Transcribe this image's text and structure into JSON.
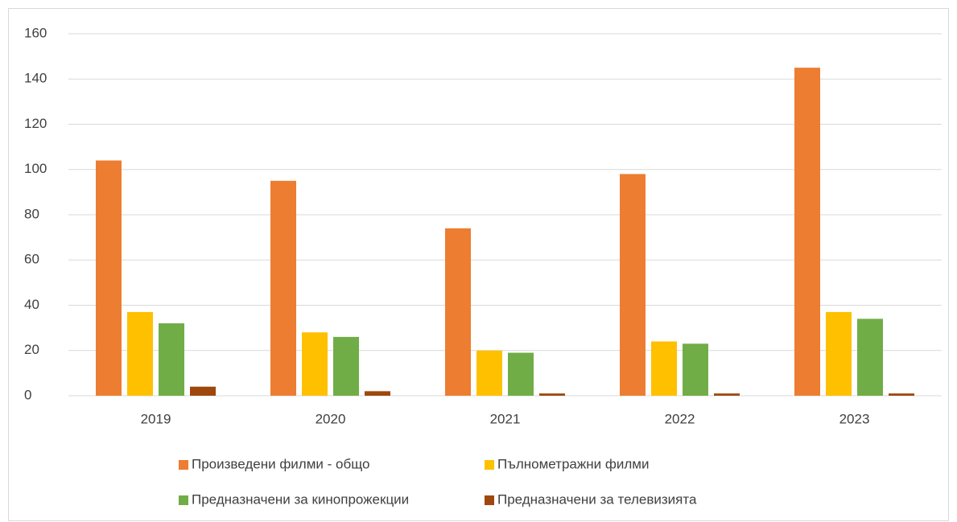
{
  "chart_data": {
    "type": "bar",
    "categories": [
      "2019",
      "2020",
      "2021",
      "2022",
      "2023"
    ],
    "series": [
      {
        "name": "Произведени филми - общо",
        "color": "#ED7D31",
        "values": [
          104,
          95,
          74,
          98,
          145
        ]
      },
      {
        "name": "Пълнометражни филми",
        "color": "#FFC000",
        "values": [
          37,
          28,
          20,
          24,
          37
        ]
      },
      {
        "name": "Предназначени за кинопрожекции",
        "color": "#70AD47",
        "values": [
          32,
          26,
          19,
          23,
          34
        ]
      },
      {
        "name": "Предназначени за телевизията",
        "color": "#9E480E",
        "values": [
          4,
          2,
          1,
          1,
          1
        ]
      }
    ],
    "ylim": [
      0,
      160
    ],
    "yticks": [
      0,
      20,
      40,
      60,
      80,
      100,
      120,
      140,
      160
    ],
    "grid": true
  }
}
